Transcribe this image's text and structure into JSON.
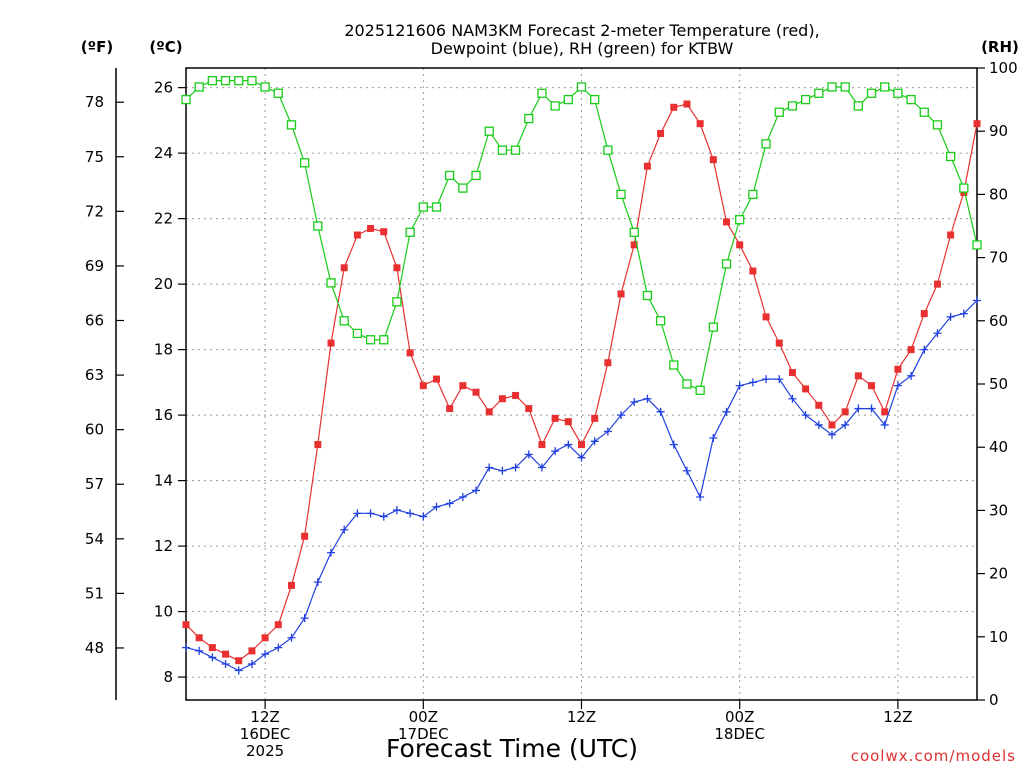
{
  "chart_data": {
    "type": "line",
    "title_line1": "2025121606 NAM3KM Forecast 2-meter Temperature (red),",
    "title_line2": "Dewpoint (blue), RH (green) for KTBW",
    "xlabel": "Forecast Time (UTC)",
    "credit": "coolwx.com/models",
    "units": {
      "fahrenheit": "(ºF)",
      "celsius": "(ºC)",
      "rh": "(RH)"
    },
    "x_forecast_hour_range": [
      0,
      60
    ],
    "ylim_celsius": [
      7.3,
      26.6
    ],
    "ylim_rh": [
      0,
      100
    ],
    "grid": true,
    "x_ticks": [
      {
        "hour": 6,
        "label": "12Z",
        "label2": "16DEC",
        "label3": "2025"
      },
      {
        "hour": 18,
        "label": "00Z",
        "label2": "17DEC",
        "label3": ""
      },
      {
        "hour": 30,
        "label": "12Z",
        "label2": "",
        "label3": ""
      },
      {
        "hour": 42,
        "label": "00Z",
        "label2": "18DEC",
        "label3": ""
      },
      {
        "hour": 54,
        "label": "12Z",
        "label2": "",
        "label3": ""
      }
    ],
    "celsius_ticks": [
      8,
      10,
      12,
      14,
      16,
      18,
      20,
      22,
      24,
      26
    ],
    "fahrenheit_ticks": [
      48,
      51,
      54,
      57,
      60,
      63,
      66,
      69,
      72,
      75,
      78
    ],
    "rh_ticks": [
      0,
      10,
      20,
      30,
      40,
      50,
      60,
      70,
      80,
      90,
      100
    ],
    "series": [
      {
        "key": "temperature",
        "axis": "celsius",
        "color": "#e83030",
        "marker": "filled-square",
        "values": [
          9.6,
          9.2,
          8.9,
          8.7,
          8.5,
          8.8,
          9.2,
          9.6,
          10.8,
          12.3,
          15.1,
          18.2,
          20.5,
          21.5,
          21.7,
          21.6,
          20.5,
          17.9,
          16.9,
          17.1,
          16.2,
          16.9,
          16.7,
          16.1,
          16.5,
          16.6,
          16.2,
          15.1,
          15.9,
          15.8,
          15.1,
          15.9,
          17.6,
          19.7,
          21.2,
          23.6,
          24.6,
          25.4,
          25.5,
          24.9,
          23.8,
          21.9,
          21.2,
          20.4,
          19.0,
          18.2,
          17.3,
          16.8,
          16.3,
          15.7,
          16.1,
          17.2,
          16.9,
          16.1,
          17.4,
          18.0,
          19.1,
          20.0,
          21.5,
          22.8,
          24.9
        ]
      },
      {
        "key": "dewpoint",
        "axis": "celsius",
        "color": "#2040e0",
        "marker": "plus",
        "values": [
          8.9,
          8.8,
          8.6,
          8.4,
          8.2,
          8.4,
          8.7,
          8.9,
          9.2,
          9.8,
          10.9,
          11.8,
          12.5,
          13.0,
          13.0,
          12.9,
          13.1,
          13.0,
          12.9,
          13.2,
          13.3,
          13.5,
          13.7,
          14.4,
          14.3,
          14.4,
          14.8,
          14.4,
          14.9,
          15.1,
          14.7,
          15.2,
          15.5,
          16.0,
          16.4,
          16.5,
          16.1,
          15.1,
          14.3,
          13.5,
          15.3,
          16.1,
          16.9,
          17.0,
          17.1,
          17.1,
          16.5,
          16.0,
          15.7,
          15.4,
          15.7,
          16.2,
          16.2,
          15.7,
          16.9,
          17.2,
          18.0,
          18.5,
          19.0,
          19.1,
          19.5
        ]
      },
      {
        "key": "rh",
        "axis": "rh",
        "color": "#18cc18",
        "marker": "open-square",
        "values": [
          95,
          97,
          98,
          98,
          98,
          98,
          97,
          96,
          91,
          85,
          75,
          66,
          60,
          58,
          57,
          57,
          63,
          74,
          78,
          78,
          83,
          81,
          83,
          90,
          87,
          87,
          92,
          96,
          94,
          95,
          97,
          95,
          87,
          80,
          74,
          64,
          60,
          53,
          50,
          49,
          59,
          69,
          76,
          80,
          88,
          93,
          94,
          95,
          96,
          97,
          97,
          94,
          96,
          97,
          96,
          95,
          93,
          91,
          86,
          81,
          72
        ]
      }
    ]
  }
}
